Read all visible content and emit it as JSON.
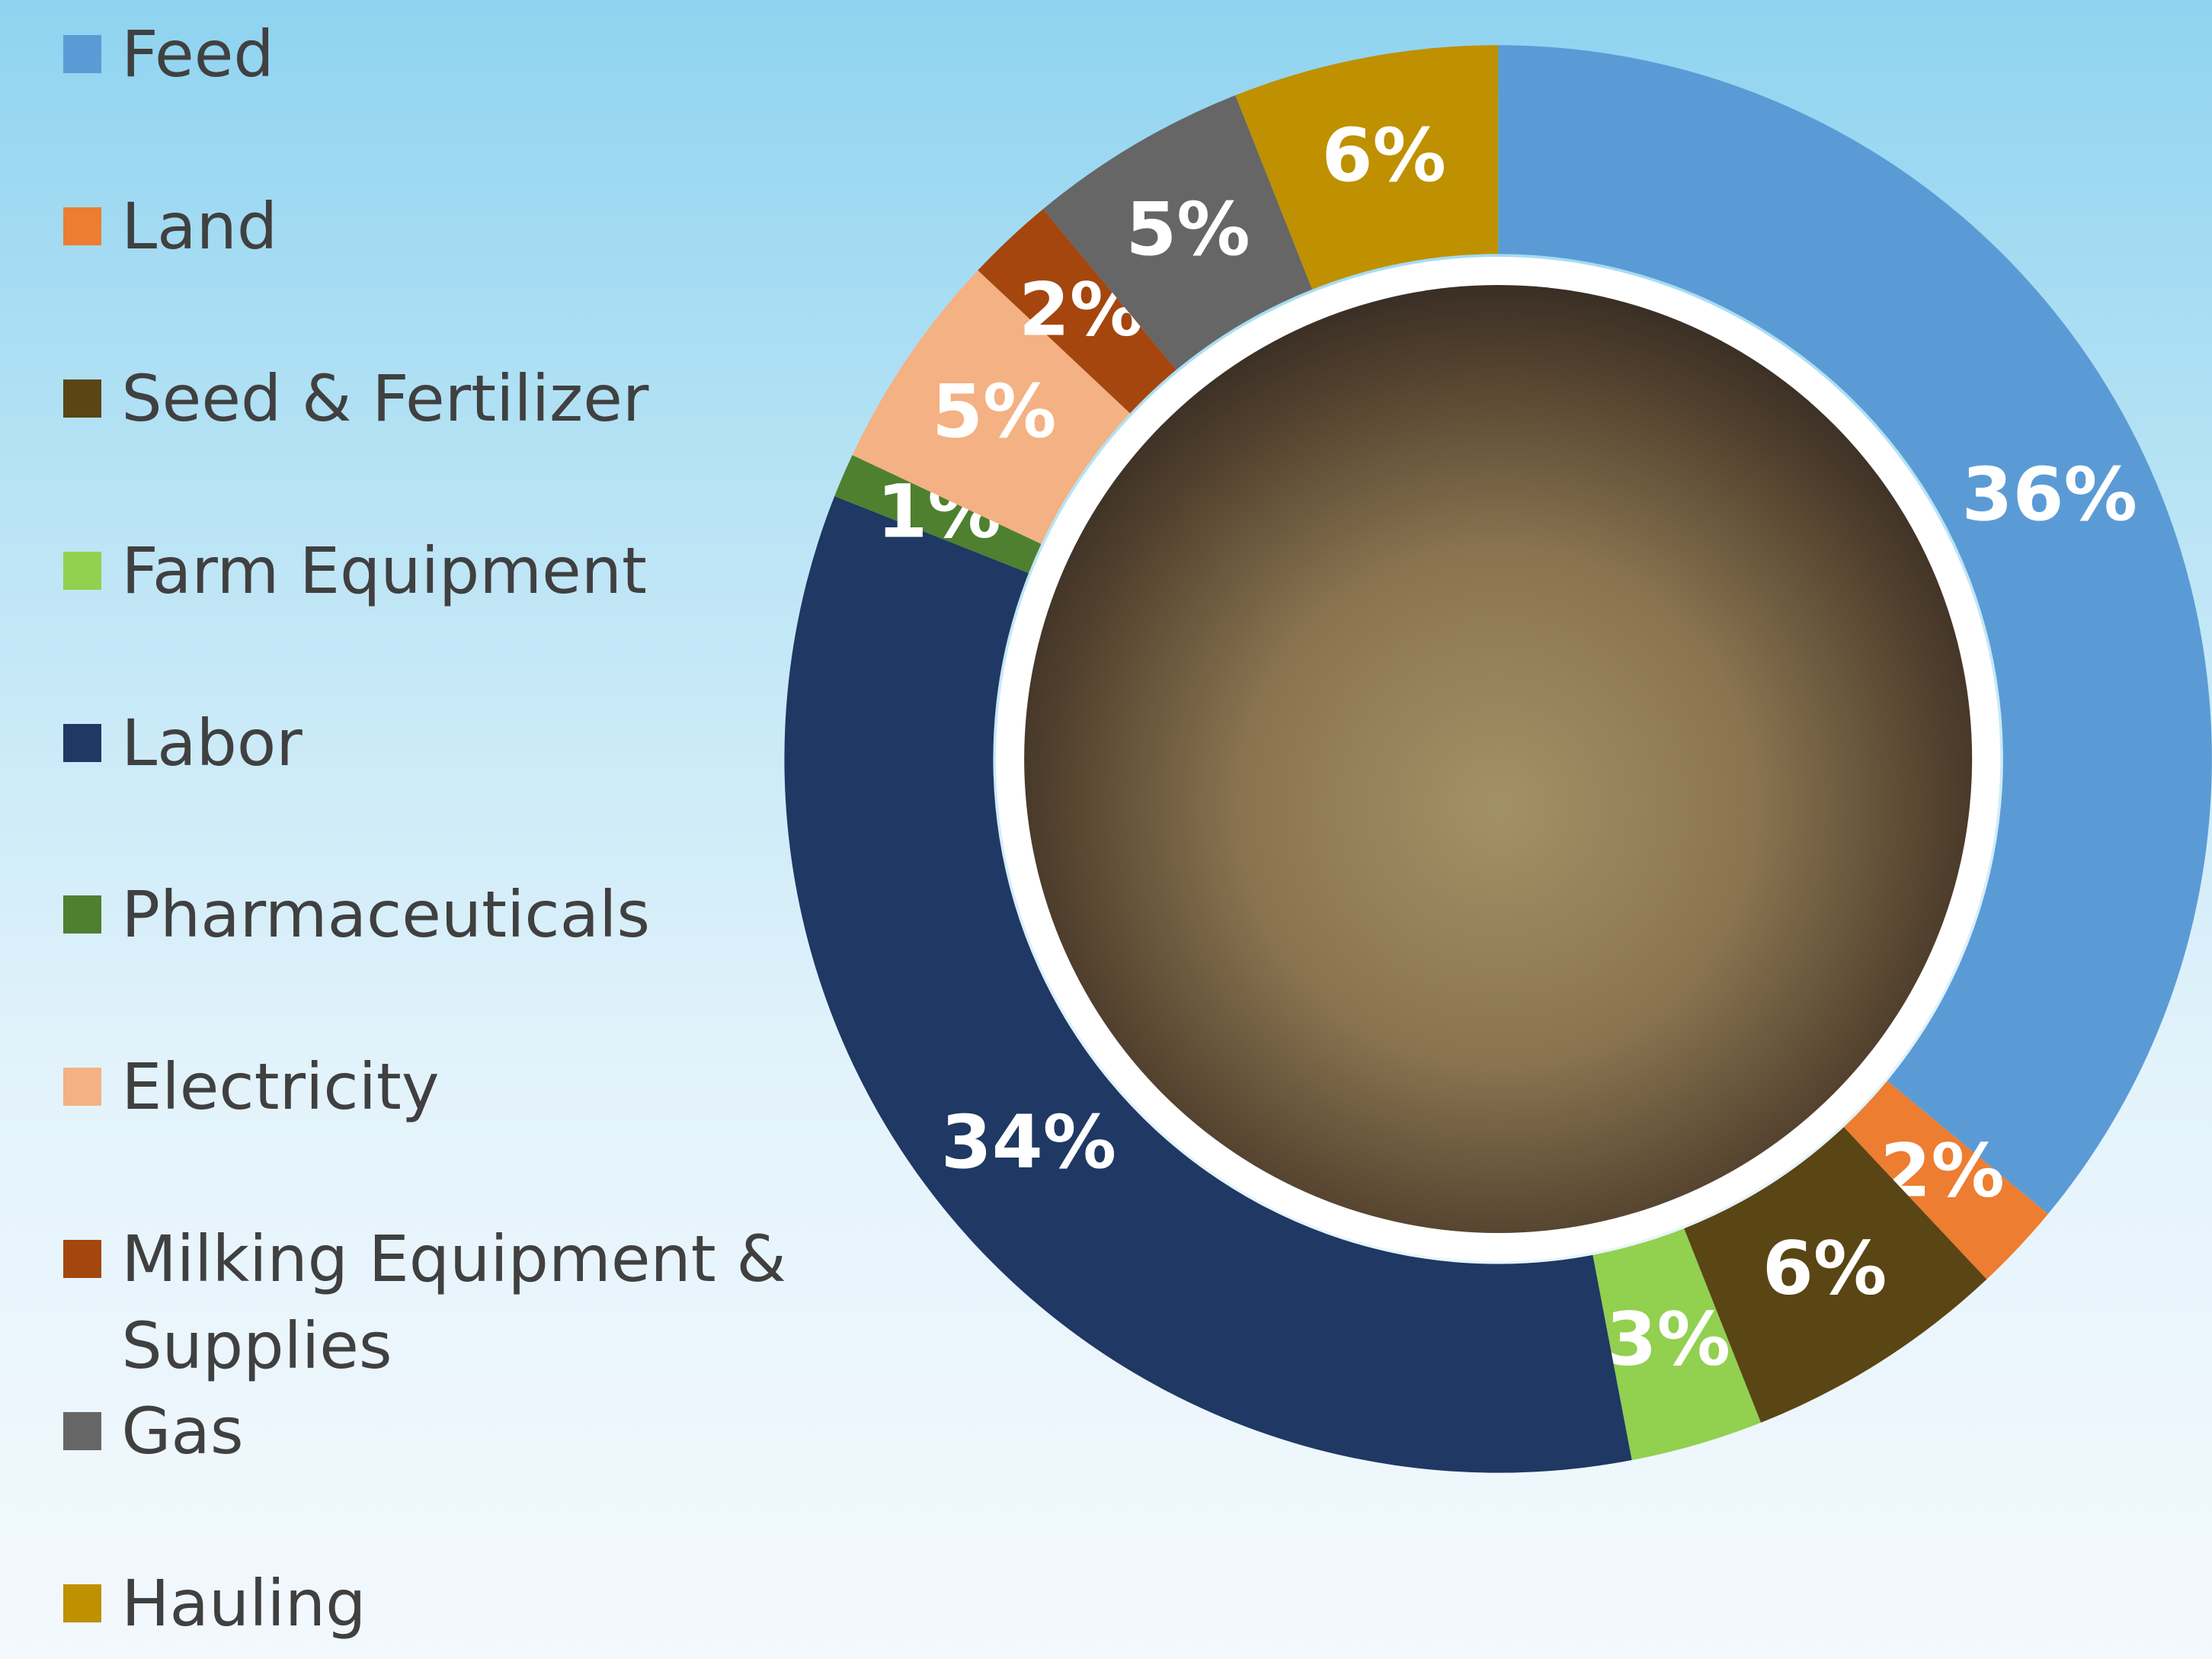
{
  "chart_data": {
    "type": "donut",
    "categories": [
      "Feed",
      "Land",
      "Seed & Fertilizer",
      "Farm Equipment",
      "Labor",
      "Pharmaceuticals",
      "Electricity",
      "Milking Equipment & Supplies",
      "Gas",
      "Hauling"
    ],
    "values": [
      36,
      2,
      6,
      3,
      34,
      1,
      5,
      2,
      5,
      6
    ],
    "value_labels": [
      "36%",
      "2%",
      "6%",
      "3%",
      "34%",
      "1%",
      "5%",
      "2%",
      "5%",
      "6%"
    ],
    "colors": [
      "#5b9bd5",
      "#ed7d31",
      "#5a4514",
      "#92d050",
      "#1f3864",
      "#4e8030",
      "#f4b183",
      "#a5460e",
      "#666666",
      "#bf9000"
    ],
    "legend": "left"
  }
}
